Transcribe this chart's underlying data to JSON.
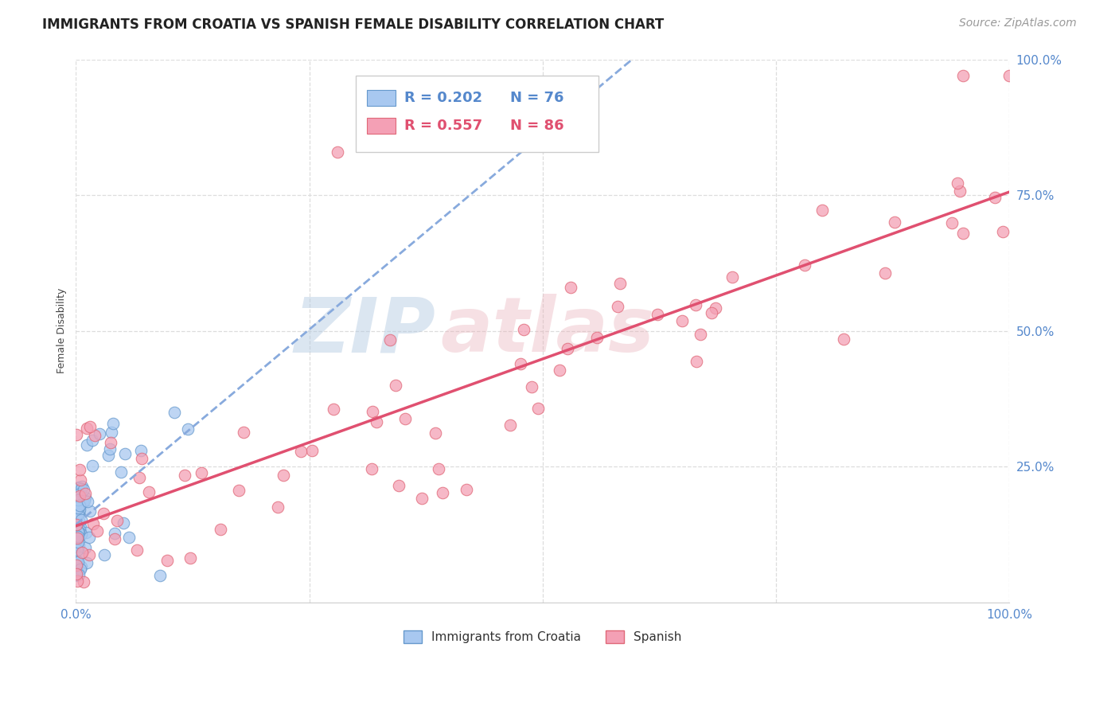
{
  "title": "IMMIGRANTS FROM CROATIA VS SPANISH FEMALE DISABILITY CORRELATION CHART",
  "source": "Source: ZipAtlas.com",
  "ylabel": "Female Disability",
  "color_croatia": "#a8c8f0",
  "color_croatia_edge": "#6699cc",
  "color_spanish": "#f4a0b5",
  "color_spanish_edge": "#e06878",
  "color_line_croatia": "#88aadd",
  "color_line_spanish": "#e05070",
  "watermark_color": "#c5d8ee",
  "tick_color": "#5588cc",
  "title_color": "#222222",
  "source_color": "#999999",
  "ylabel_color": "#444444",
  "grid_color": "#dddddd",
  "background_color": "#ffffff",
  "title_fontsize": 12,
  "source_fontsize": 10,
  "axis_label_fontsize": 9,
  "tick_fontsize": 11,
  "legend_fontsize": 13
}
